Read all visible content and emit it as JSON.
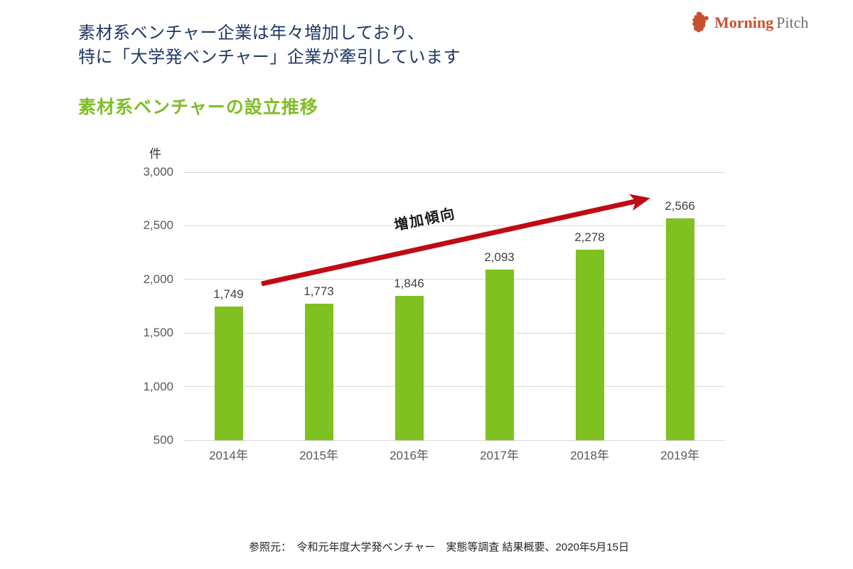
{
  "header": {
    "title_line1": "素材系ベンチャー企業は年々増加しており、",
    "title_line2": "特に「大学発ベンチャー」企業が牽引しています",
    "logo": {
      "icon": "rooster-mark-icon",
      "brand_primary": "Morning",
      "brand_secondary": "Pitch"
    }
  },
  "chart_title": "素材系ベンチャーの設立推移",
  "chart_data": {
    "type": "bar",
    "title": "素材系ベンチャーの設立推移",
    "unit_label": "件",
    "categories": [
      "2014年",
      "2015年",
      "2016年",
      "2017年",
      "2018年",
      "2019年"
    ],
    "values": [
      1749,
      1773,
      1846,
      2093,
      2278,
      2566
    ],
    "value_labels": [
      "1,749",
      "1,773",
      "1,846",
      "2,093",
      "2,278",
      "2,566"
    ],
    "ylim": [
      500,
      3000
    ],
    "yticks": [
      3000,
      2500,
      2000,
      1500,
      1000,
      500
    ],
    "ytick_labels": [
      "3,000",
      "2,500",
      "2,000",
      "1,500",
      "1,000",
      "500"
    ],
    "grid": true,
    "legend": "none",
    "annotation": {
      "type": "trend-arrow",
      "text": "増加傾向",
      "direction": "up-right"
    }
  },
  "colors": {
    "title_navy": "#1F3864",
    "subtitle_green": "#7FBE28",
    "bar_green": "#7EC120",
    "arrow_red": "#C00A14",
    "axis_gray": "#595959",
    "grid_gray": "#D9D9D9",
    "brand_red": "#C8502E",
    "brand_gray": "#6F6F6F"
  },
  "footer": {
    "source": "参照元：　令和元年度大学発ベンチャー　実態等調査 結果概要、2020年5月15日"
  }
}
